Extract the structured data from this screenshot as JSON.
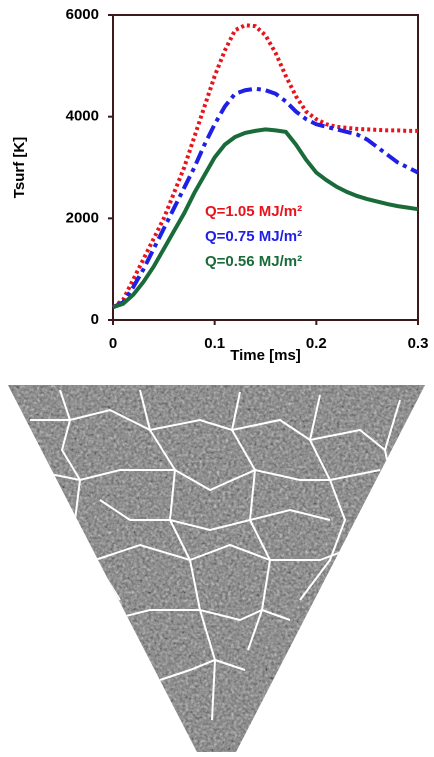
{
  "chart_data": {
    "type": "line",
    "xlabel": "Time [ms]",
    "ylabel": "Tsurf [K]",
    "x": [
      0,
      0.01,
      0.02,
      0.03,
      0.04,
      0.05,
      0.06,
      0.07,
      0.08,
      0.09,
      0.1,
      0.11,
      0.12,
      0.13,
      0.14,
      0.15,
      0.16,
      0.17,
      0.18,
      0.19,
      0.2,
      0.21,
      0.22,
      0.23,
      0.24,
      0.25,
      0.26,
      0.27,
      0.28,
      0.29,
      0.3
    ],
    "series": [
      {
        "name": "Q=1.05 MJ/m²",
        "color": "#e8141c",
        "style": "dotted",
        "values": [
          250,
          400,
          800,
          1200,
          1600,
          2000,
          2500,
          3000,
          3600,
          4200,
          4800,
          5300,
          5700,
          5800,
          5780,
          5600,
          5250,
          4800,
          4400,
          4100,
          3950,
          3850,
          3800,
          3780,
          3760,
          3750,
          3740,
          3730,
          3730,
          3720,
          3720
        ]
      },
      {
        "name": "Q=0.75 MJ/m²",
        "color": "#1f1fe6",
        "style": "dashdot",
        "values": [
          250,
          350,
          650,
          1000,
          1400,
          1800,
          2200,
          2600,
          3000,
          3450,
          3850,
          4200,
          4450,
          4520,
          4550,
          4520,
          4450,
          4300,
          4100,
          3950,
          3850,
          3800,
          3750,
          3700,
          3650,
          3550,
          3400,
          3250,
          3100,
          3000,
          2900
        ]
      },
      {
        "name": "Q=0.56 MJ/m²",
        "color": "#1a6b3a",
        "style": "solid",
        "values": [
          250,
          320,
          500,
          750,
          1050,
          1400,
          1750,
          2100,
          2500,
          2850,
          3200,
          3450,
          3600,
          3680,
          3720,
          3750,
          3730,
          3700,
          3450,
          3150,
          2900,
          2750,
          2620,
          2520,
          2440,
          2380,
          2330,
          2280,
          2240,
          2210,
          2180
        ]
      }
    ],
    "xlim": [
      0,
      0.3
    ],
    "xticks": [
      0,
      0.1,
      0.2,
      0.3
    ],
    "ylim": [
      0,
      6000
    ],
    "yticks": [
      0,
      2000,
      4000,
      6000
    ],
    "grid": false
  }
}
